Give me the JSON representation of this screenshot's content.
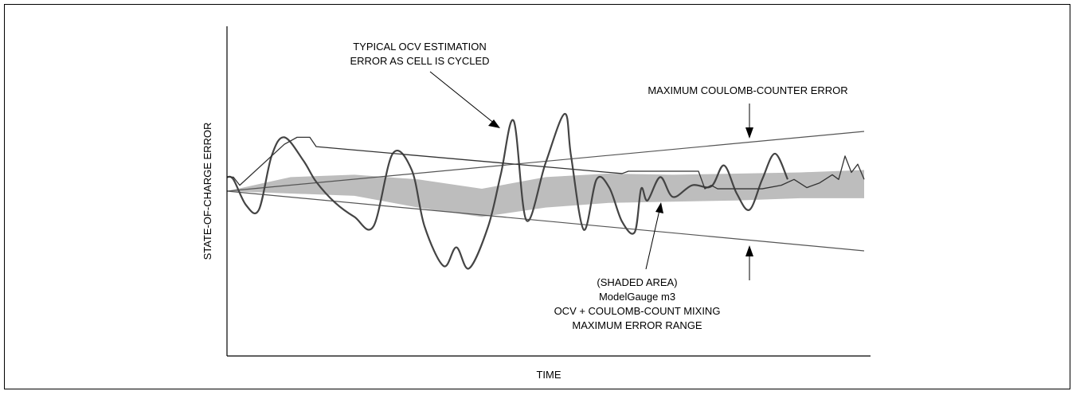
{
  "chart_data": {
    "type": "line",
    "title": "",
    "xlabel": "TIME",
    "ylabel": "STATE-OF-CHARGE ERROR",
    "xlim": [
      0,
      100
    ],
    "ylim": [
      -1,
      1
    ],
    "grid": false,
    "legend": "none",
    "colors": {
      "band": "#bdbdbd",
      "coulomb_lines": "#555555",
      "ocv_curve": "#444444",
      "mixing_curve": "#333333",
      "axes": "#000000"
    },
    "series": [
      {
        "role": "coulomb-upper",
        "x": [
          0,
          100
        ],
        "y": [
          0,
          0.51
        ]
      },
      {
        "role": "coulomb-lower",
        "x": [
          0,
          100
        ],
        "y": [
          0,
          -0.51
        ]
      },
      {
        "role": "shaded-band-upper",
        "x": [
          0,
          10,
          20,
          30,
          40,
          50,
          60,
          70,
          80,
          90,
          100
        ],
        "y": [
          0,
          0.12,
          0.14,
          0.1,
          0.02,
          0.12,
          0.15,
          0.14,
          0.15,
          0.16,
          0.18
        ]
      },
      {
        "role": "shaded-band-lower",
        "x": [
          0,
          10,
          20,
          30,
          40,
          50,
          60,
          70,
          80,
          90,
          100
        ],
        "y": [
          0,
          -0.02,
          -0.04,
          -0.14,
          -0.22,
          -0.14,
          -0.1,
          -0.09,
          -0.08,
          -0.06,
          -0.06
        ]
      },
      {
        "role": "ocv-estimation-error",
        "x": [
          0,
          1,
          3,
          5,
          7,
          9,
          12,
          14,
          17,
          20,
          23,
          26,
          29,
          31,
          34,
          36,
          38,
          41,
          43,
          45,
          47,
          50,
          53,
          54,
          56,
          58,
          60,
          62,
          64,
          65,
          66,
          68,
          70,
          73,
          76,
          78,
          80,
          82,
          84,
          86,
          88
        ],
        "y": [
          0.12,
          0.1,
          -0.12,
          -0.16,
          0.3,
          0.46,
          0.26,
          0.08,
          -0.1,
          -0.22,
          -0.3,
          0.32,
          0.18,
          -0.3,
          -0.64,
          -0.48,
          -0.66,
          -0.3,
          0.15,
          0.6,
          -0.25,
          0.24,
          0.66,
          0.3,
          -0.33,
          0.1,
          0.03,
          -0.26,
          -0.35,
          0.02,
          -0.08,
          0.12,
          -0.05,
          0.05,
          0.04,
          0.22,
          -0.02,
          -0.16,
          0.1,
          0.32,
          0.1
        ]
      },
      {
        "role": "mixing-trace",
        "x": [
          0,
          1,
          2,
          9,
          10,
          11,
          13,
          14,
          62,
          63,
          74,
          75,
          76,
          77,
          84,
          87,
          89,
          91,
          93,
          95,
          96,
          97,
          98,
          99,
          100
        ],
        "y": [
          0.12,
          0.12,
          0.05,
          0.4,
          0.43,
          0.46,
          0.46,
          0.38,
          0.15,
          0.17,
          0.17,
          0.02,
          0.05,
          0.02,
          0.02,
          0.05,
          0.1,
          0.03,
          0.07,
          0.14,
          0.1,
          0.3,
          0.16,
          0.23,
          0.1
        ]
      }
    ],
    "annotations": {
      "ocv_error_line1": "TYPICAL OCV ESTIMATION",
      "ocv_error_line2": "ERROR AS CELL IS CYCLED",
      "coulomb_error": "MAXIMUM COULOMB-COUNTER ERROR",
      "shaded_line1": "(SHADED AREA)",
      "shaded_line2": "ModelGauge m3",
      "shaded_line3": "OCV + COULOMB-COUNT MIXING",
      "shaded_line4": "MAXIMUM ERROR RANGE"
    }
  }
}
